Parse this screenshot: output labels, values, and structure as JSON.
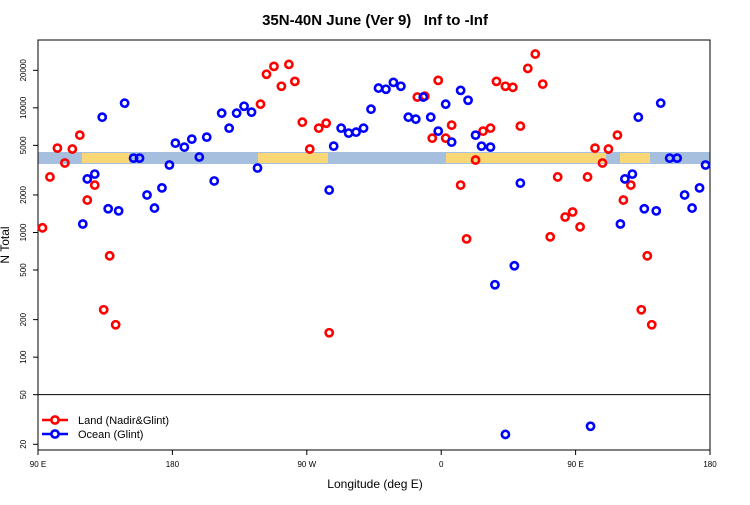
{
  "chart_data": {
    "type": "scatter",
    "title": "35N-40N June (Ver 9)   Inf to -Inf",
    "x_label": "Longitude (deg E)",
    "y_label": "N Total",
    "log_y": true,
    "xlim": [
      90,
      540
    ],
    "ylim": [
      18,
      35000
    ],
    "xticks": [
      {
        "value": 90,
        "label": "90 E"
      },
      180,
      {
        "value": 270,
        "label": "90 W"
      },
      {
        "value": 360,
        "label": "0"
      },
      {
        "value": 450,
        "label": "90 E"
      },
      {
        "value": 540,
        "label": "180"
      }
    ],
    "yticks": [
      20,
      50,
      100,
      200,
      500,
      1000,
      2000,
      5000,
      10000,
      20000
    ],
    "hline": 50,
    "legend": "bottomleft",
    "series": [
      {
        "name": "Land (Nadir&Glint)",
        "color": "#ff0000",
        "x": [
          93,
          98,
          103,
          108,
          113,
          118,
          123,
          128,
          134,
          138,
          142,
          239,
          243,
          248,
          253,
          258,
          262,
          267,
          272,
          278,
          283,
          285,
          344,
          349,
          354,
          358,
          363,
          367,
          373,
          377,
          383,
          388,
          393,
          397,
          403,
          408,
          413,
          418,
          423,
          428,
          433,
          438,
          443,
          448,
          453,
          458,
          463,
          468,
          472,
          478,
          482,
          487,
          494,
          498,
          501
        ],
        "values": [
          1090,
          2790,
          4750,
          3610,
          4670,
          6040,
          1820,
          2400,
          240,
          650,
          182,
          10700,
          18600,
          21500,
          14900,
          22300,
          16300,
          7670,
          4670,
          6870,
          7530,
          157,
          12200,
          12400,
          5710,
          16600,
          5710,
          7260,
          2400,
          889,
          3810,
          6500,
          6870,
          16300,
          14900,
          14600,
          7130,
          20700,
          27000,
          15500,
          923,
          2790,
          1330,
          1460,
          1110,
          2790,
          4750,
          3610,
          4670,
          6040,
          1820,
          2400,
          240,
          650,
          182
        ]
      },
      {
        "name": "Ocean (Glint)",
        "color": "#0000ff",
        "x": [
          120,
          123,
          128,
          133,
          137,
          144,
          148,
          154,
          158,
          163,
          168,
          173,
          178,
          182,
          188,
          193,
          198,
          203,
          208,
          213,
          218,
          223,
          228,
          233,
          237,
          285,
          288,
          293,
          298,
          303,
          308,
          313,
          318,
          323,
          328,
          333,
          338,
          343,
          348,
          353,
          358,
          363,
          367,
          373,
          378,
          383,
          387,
          393,
          396,
          403,
          409,
          413,
          460,
          480,
          483,
          488,
          492,
          496,
          504,
          507,
          513,
          518,
          523,
          528,
          533,
          537
        ],
        "values": [
          1170,
          2690,
          2940,
          8410,
          1550,
          1490,
          10900,
          3950,
          3950,
          2000,
          1570,
          2280,
          3480,
          5210,
          4840,
          5610,
          4030,
          5820,
          2590,
          9060,
          6870,
          9060,
          10300,
          9230,
          3290,
          2190,
          4930,
          6870,
          6270,
          6380,
          6870,
          9750,
          14400,
          14100,
          16000,
          14900,
          8410,
          8110,
          12200,
          8410,
          6500,
          10700,
          5310,
          13800,
          11500,
          6040,
          4930,
          4840,
          381,
          24.0,
          541,
          2490,
          27.9,
          1170,
          2690,
          2940,
          8410,
          1550,
          1490,
          10900,
          3950,
          3950,
          2000,
          1570,
          2280,
          3480
        ]
      }
    ]
  }
}
